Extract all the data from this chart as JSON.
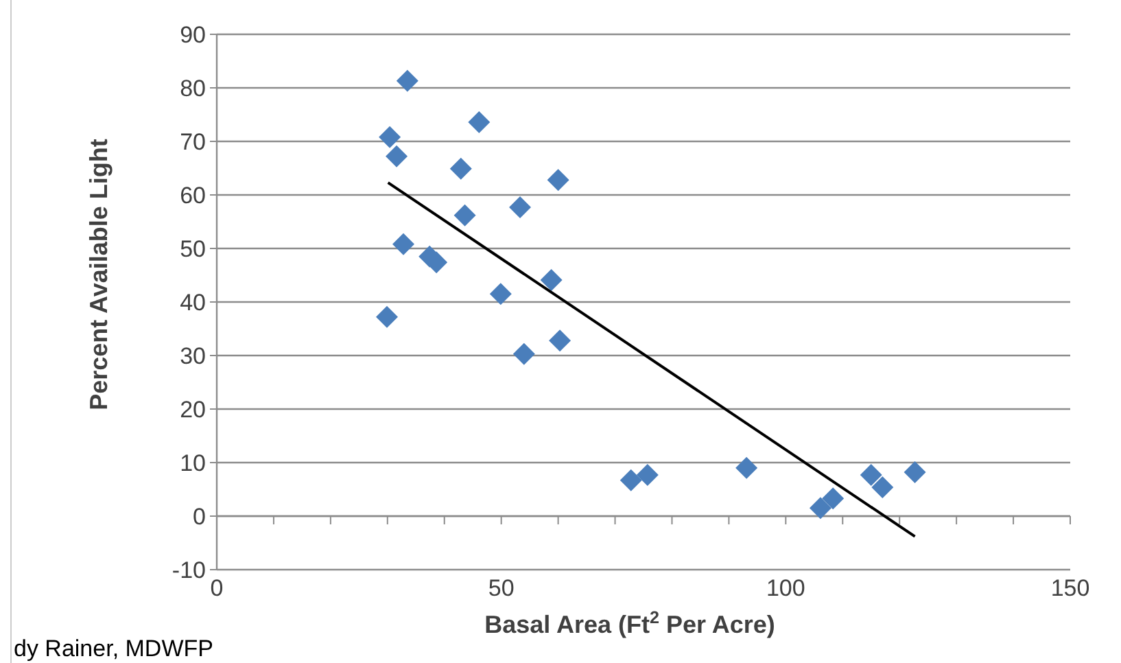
{
  "chart_data": {
    "type": "scatter",
    "xlabel": "Basal Area (Ft$^{2}$ Per Acre)",
    "ylabel": "Percent Available Light",
    "xlim": [
      0,
      150
    ],
    "ylim": [
      -10,
      90
    ],
    "xticks": [
      0,
      {
        "value": 10,
        "label": null
      },
      {
        "value": 20,
        "label": null
      },
      {
        "value": 30,
        "label": null
      },
      {
        "value": 40,
        "label": null
      },
      50,
      {
        "value": 60,
        "label": null
      },
      {
        "value": 70,
        "label": null
      },
      {
        "value": 80,
        "label": null
      },
      {
        "value": 90,
        "label": null
      },
      100,
      {
        "value": 110,
        "label": null
      },
      {
        "value": 120,
        "label": null
      },
      {
        "value": 130,
        "label": null
      },
      {
        "value": 140,
        "label": null
      },
      150
    ],
    "yticks": [
      -10,
      0,
      10,
      20,
      30,
      40,
      50,
      60,
      70,
      80,
      90
    ],
    "grid": "y",
    "marker": "diamond",
    "annotations": [
      "dy Rainer, MDWFP"
    ],
    "series": [
      {
        "color": "#4a7ebb",
        "x": [
          33.5,
          30.4,
          31.6,
          46.1,
          42.9,
          43.6,
          53.3,
          60.0,
          32.8,
          37.4,
          38.6,
          49.9,
          58.8,
          29.9,
          54.0,
          60.3,
          72.8,
          75.7,
          93.1,
          106.1,
          108.3,
          115.0,
          117.0,
          122.7
        ],
        "values": [
          81.3,
          70.8,
          67.2,
          73.6,
          64.9,
          56.2,
          57.7,
          62.8,
          50.8,
          48.5,
          47.4,
          41.5,
          44.1,
          37.2,
          30.3,
          32.8,
          6.7,
          7.7,
          9.0,
          1.5,
          3.3,
          7.7,
          5.4,
          8.2
        ]
      },
      {
        "type": "line",
        "color": "#000000",
        "marker": "none",
        "x": [
          30.1,
          122.7
        ],
        "values": [
          62.3,
          -3.8
        ]
      }
    ]
  }
}
